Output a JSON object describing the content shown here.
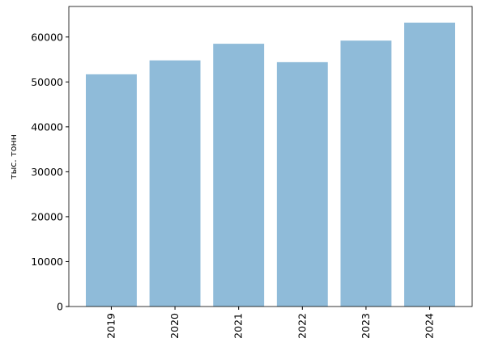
{
  "chart_data": {
    "type": "bar",
    "ylabel": "тыс. тонн",
    "categories": [
      "2019",
      "2020",
      "2021",
      "2022",
      "2023",
      "2024"
    ],
    "values": [
      51700,
      54800,
      58500,
      54400,
      59200,
      63200
    ],
    "color": "#8fbbd9",
    "ylim": [
      0,
      66800
    ],
    "yticks": [
      0,
      10000,
      20000,
      30000,
      40000,
      50000,
      60000
    ]
  }
}
